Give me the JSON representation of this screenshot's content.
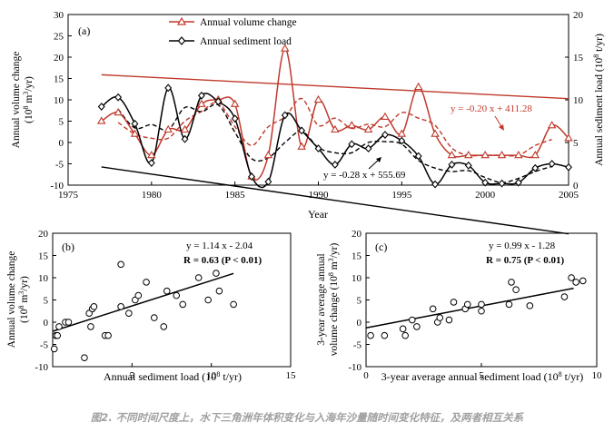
{
  "caption": "图2. 不同时间尺度上，水下三角洲年体积变化与入海年沙量随时间变化特征，及两者相互关系",
  "colors": {
    "volume": "#c0392b",
    "sediment": "#000000",
    "trend_volume": "#c0392b",
    "trend_sediment": "#000000"
  },
  "chart_data": [
    {
      "id": "a",
      "type": "line",
      "panel_label": "(a)",
      "xlabel": "Year",
      "ylabel_left": "Annual volume change (10^8 m^3/yr)",
      "ylabel_right": "Annual sediment load (10^8 t/yr)",
      "xlim": [
        1975,
        2005
      ],
      "ylim_left": [
        -10,
        30
      ],
      "ylim_right": [
        0,
        20
      ],
      "xticks": [
        "1975",
        "1980",
        "1985",
        "1990",
        "1995",
        "2000",
        "2005"
      ],
      "yticks_left": [
        "-10",
        "-5",
        "0",
        "5",
        "10",
        "15",
        "20",
        "25",
        "30"
      ],
      "yticks_right": [
        "0",
        "5",
        "10",
        "15",
        "20"
      ],
      "legend_position": "top-center",
      "series": [
        {
          "name": "Annual volume change",
          "axis": "left",
          "marker": "triangle",
          "x": [
            1977,
            1978,
            1979,
            1980,
            1981,
            1982,
            1983,
            1984,
            1985,
            1986,
            1987,
            1988,
            1989,
            1990,
            1991,
            1992,
            1993,
            1994,
            1995,
            1996,
            1997,
            1998,
            1999,
            2000,
            2001,
            2002,
            2003,
            2004,
            2005
          ],
          "y": [
            5,
            7,
            2,
            -3,
            3,
            3,
            9,
            10,
            9,
            -8,
            -3,
            22,
            -1,
            10,
            3,
            4,
            3,
            6,
            2,
            13,
            2,
            -3,
            -3,
            -3,
            -3,
            -3,
            -3,
            4,
            1
          ]
        },
        {
          "name": "Annual sediment load",
          "axis": "right",
          "marker": "diamond",
          "x": [
            1977,
            1978,
            1979,
            1980,
            1981,
            1982,
            1983,
            1984,
            1985,
            1986,
            1987,
            1988,
            1989,
            1990,
            1991,
            1992,
            1993,
            1994,
            1995,
            1996,
            1997,
            1998,
            1999,
            2000,
            2001,
            2002,
            2003,
            2004,
            2005
          ],
          "y": [
            9.2,
            10.3,
            7.2,
            2.6,
            11.4,
            5.4,
            10.5,
            9.8,
            7.8,
            1.0,
            0.4,
            8.2,
            6.4,
            4.3,
            2.4,
            4.8,
            4.3,
            5.9,
            5.2,
            3.4,
            0.1,
            2.4,
            2.3,
            0.3,
            0.2,
            0.3,
            2.0,
            2.5,
            2.1
          ]
        }
      ],
      "moving_average_volume": {
        "x": [
          1978,
          1979,
          1980,
          1981,
          1982,
          1983,
          1984,
          1985,
          1986,
          1987,
          1988,
          1989,
          1990,
          1991,
          1992,
          1993,
          1994,
          1995,
          1996,
          1997,
          1998,
          1999,
          2000,
          2001,
          2002,
          2003,
          2004
        ],
        "y": [
          4.7,
          2,
          1,
          1,
          5,
          7.3,
          9.3,
          3.7,
          -0.7,
          3.7,
          6,
          10.3,
          4,
          5.7,
          3.3,
          4.3,
          3.7,
          7,
          5.7,
          4,
          -1.3,
          -3,
          -3,
          -3,
          -3,
          -0.7,
          0.7
        ]
      },
      "moving_average_sediment": {
        "x": [
          1978,
          1979,
          1980,
          1981,
          1982,
          1983,
          1984,
          1985,
          1986,
          1987,
          1988,
          1989,
          1990,
          1991,
          1992,
          1993,
          1994,
          1995,
          1996,
          1997,
          1998,
          1999,
          2000,
          2001,
          2002,
          2003,
          2004
        ],
        "y": [
          8.9,
          6.7,
          7.1,
          6.5,
          9.1,
          8.6,
          9.4,
          6.2,
          3.1,
          3.2,
          5,
          6.3,
          4.4,
          3.8,
          3.8,
          5,
          5.1,
          4.8,
          2.9,
          2,
          1.6,
          1.7,
          0.9,
          0.3,
          0.8,
          1.6,
          2.2
        ]
      },
      "trends": [
        {
          "equation": "y = -0.20 x + 411.28",
          "axis": "left",
          "slope": -0.2,
          "intercept": 411.28
        },
        {
          "equation": "y = -0.28 x + 555.69",
          "axis": "right",
          "slope": -0.28,
          "intercept": 555.69
        }
      ]
    },
    {
      "id": "b",
      "type": "scatter",
      "panel_label": "(b)",
      "xlabel": "Annual sediment load (10^8 t/yr)",
      "ylabel": "Annual volume change (10^8 m^3/yr)",
      "xlim": [
        0,
        15
      ],
      "ylim": [
        -10,
        20
      ],
      "xticks": [
        "5",
        "10",
        "15"
      ],
      "yticks": [
        "-10",
        "-5",
        "0",
        "5",
        "10",
        "15",
        "20"
      ],
      "equation": "y = 1.14 x - 2.04",
      "stats": "R = 0.63 (P < 0.01)",
      "fit": {
        "slope": 1.14,
        "intercept": -2.04,
        "x_range": [
          0,
          11.4
        ]
      },
      "points": [
        [
          0.1,
          -6
        ],
        [
          0.2,
          -3
        ],
        [
          0.3,
          -3
        ],
        [
          0.4,
          -1
        ],
        [
          0.8,
          0
        ],
        [
          1.0,
          0
        ],
        [
          2.0,
          -8
        ],
        [
          2.3,
          2
        ],
        [
          2.4,
          -1
        ],
        [
          2.5,
          3
        ],
        [
          2.6,
          3.5
        ],
        [
          3.3,
          -3
        ],
        [
          3.5,
          -3
        ],
        [
          4.3,
          3.5
        ],
        [
          4.3,
          13
        ],
        [
          4.8,
          2
        ],
        [
          5.2,
          5
        ],
        [
          5.4,
          6
        ],
        [
          5.9,
          9
        ],
        [
          6.4,
          1
        ],
        [
          7.0,
          -1
        ],
        [
          7.2,
          7
        ],
        [
          7.8,
          6
        ],
        [
          8.2,
          4
        ],
        [
          9.2,
          10
        ],
        [
          9.8,
          5
        ],
        [
          10.3,
          11
        ],
        [
          10.5,
          7
        ],
        [
          11.4,
          4
        ]
      ]
    },
    {
      "id": "c",
      "type": "scatter",
      "panel_label": "(c)",
      "xlabel": "3-year average annual sediment load (10^8 t/yr)",
      "ylabel": "3-year average annual volume change (10^8 m^3/yr)",
      "xlim": [
        0,
        10
      ],
      "ylim": [
        -10,
        20
      ],
      "xticks": [
        "0",
        "5",
        "10"
      ],
      "yticks": [
        "-10",
        "-5",
        "0",
        "5",
        "10",
        "15",
        "20"
      ],
      "equation": "y = 0.99 x - 1.28",
      "stats": "R = 0.75 (P < 0.01)",
      "fit": {
        "slope": 0.99,
        "intercept": -1.28,
        "x_range": [
          0,
          9
        ]
      },
      "points": [
        [
          0.2,
          -3
        ],
        [
          0.8,
          -3
        ],
        [
          1.6,
          -1.5
        ],
        [
          1.7,
          -3
        ],
        [
          2.0,
          0.5
        ],
        [
          2.2,
          -1
        ],
        [
          2.9,
          3
        ],
        [
          3.1,
          0
        ],
        [
          3.2,
          1
        ],
        [
          3.6,
          0.5
        ],
        [
          3.8,
          4.5
        ],
        [
          4.3,
          3
        ],
        [
          4.4,
          4
        ],
        [
          5.0,
          2.5
        ],
        [
          5.0,
          4
        ],
        [
          6.2,
          4
        ],
        [
          6.3,
          9
        ],
        [
          6.5,
          7.3
        ],
        [
          7.1,
          3.7
        ],
        [
          8.6,
          5.7
        ],
        [
          8.9,
          10
        ],
        [
          9.1,
          9
        ],
        [
          9.4,
          9.3
        ]
      ]
    }
  ]
}
